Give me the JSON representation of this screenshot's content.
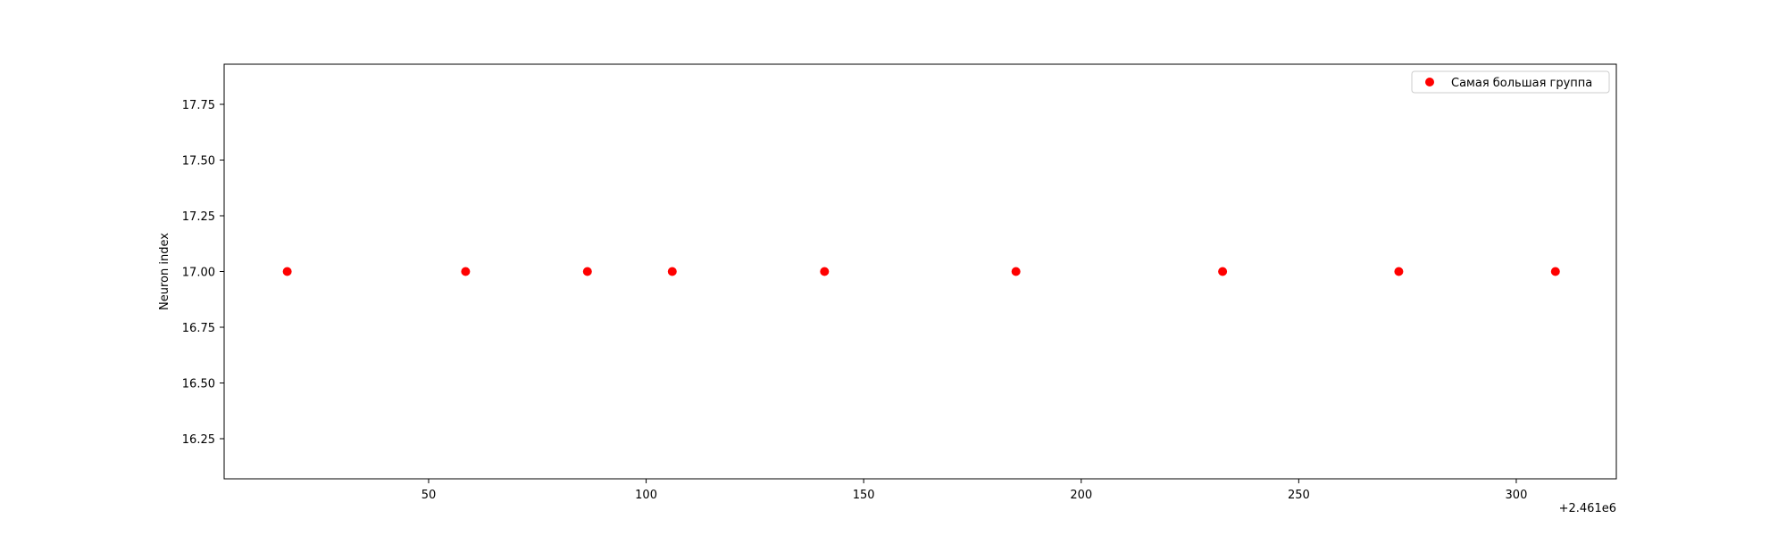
{
  "chart_data": {
    "type": "scatter",
    "title": "",
    "xlabel": "",
    "ylabel": "Neuron index",
    "x_offset_label": "+2.461e6",
    "xlim": [
      3,
      323
    ],
    "ylim": [
      16.07,
      17.93
    ],
    "x_ticks": [
      50,
      100,
      150,
      200,
      250,
      300
    ],
    "x_tick_labels": [
      "50",
      "100",
      "150",
      "200",
      "250",
      "300"
    ],
    "y_ticks": [
      16.25,
      16.5,
      16.75,
      17.0,
      17.25,
      17.5,
      17.75
    ],
    "y_tick_labels": [
      "16.25",
      "16.50",
      "16.75",
      "17.00",
      "17.25",
      "17.50",
      "17.75"
    ],
    "grid": false,
    "legend_position": "top-right",
    "series": [
      {
        "name": "Самая большая группа",
        "color": "#ff0000",
        "marker": "circle",
        "x": [
          2461017.5,
          2461058.5,
          2461086.5,
          2461106,
          2461141,
          2461185,
          2461232.5,
          2461273,
          2461309
        ],
        "y": [
          17,
          17,
          17,
          17,
          17,
          17,
          17,
          17,
          17
        ]
      }
    ]
  }
}
